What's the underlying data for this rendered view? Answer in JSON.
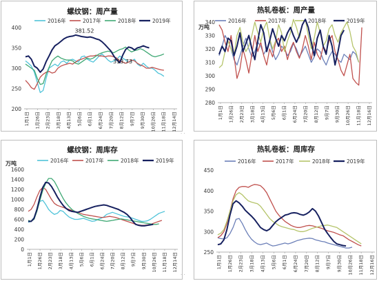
{
  "layout_note": "four line charts of weekly steel data, 2016-2019",
  "colors": {
    "2016": "#4fc3d9",
    "2017": "#c0504d",
    "2018": "#3fa874",
    "2019": "#16205f",
    "2016_alt": "#6b7fb8",
    "2018_alt": "#b5c46a"
  },
  "chart_data": [
    {
      "type": "line",
      "title": "螺纹钢：周产量",
      "unit": "",
      "ylim": [
        200,
        400
      ],
      "yticks": [
        200,
        250,
        300,
        350,
        400
      ],
      "xticks": [
        "1月1日",
        "1月26日",
        "2月23日",
        "3月18日",
        "4月13日",
        "5月6日",
        "6月1日",
        "6月24日",
        "7月20日",
        "8月12日",
        "9月7日",
        "9月30日",
        "10月26日",
        "11月18日",
        "12月14日"
      ],
      "annotations": [
        {
          "text": "381.52",
          "series": "2019年",
          "x": 20
        },
        {
          "text": "313.73",
          "series": "2019年",
          "x": 33
        }
      ],
      "series": [
        {
          "name": "2016年",
          "color": "#4fc3d9",
          "width": 1.3,
          "values": [
            318,
            312,
            305,
            290,
            265,
            240,
            245,
            275,
            300,
            305,
            310,
            305,
            315,
            318,
            312,
            320,
            322,
            318,
            315,
            328,
            330,
            322,
            318,
            315,
            322,
            330,
            335,
            328,
            320,
            315,
            318,
            322,
            330,
            325,
            320,
            315,
            318,
            322,
            310,
            305,
            312,
            305,
            300,
            300,
            295,
            288,
            285,
            280
          ]
        },
        {
          "name": "2017年",
          "color": "#c0504d",
          "width": 1.3,
          "values": [
            270,
            262,
            252,
            248,
            262,
            278,
            285,
            290,
            292,
            288,
            290,
            300,
            305,
            308,
            310,
            312,
            310,
            315,
            320,
            322,
            325,
            328,
            330,
            330,
            332,
            330,
            330,
            328,
            330,
            330,
            328,
            325,
            318,
            315,
            312,
            315,
            320,
            318,
            312,
            308,
            305,
            300,
            300,
            302,
            300,
            298,
            296,
            295
          ]
        },
        {
          "name": "2018年",
          "color": "#3fa874",
          "width": 1.3,
          "values": [
            310,
            305,
            300,
            295,
            275,
            260,
            262,
            285,
            302,
            318,
            325,
            330,
            325,
            322,
            320,
            320,
            318,
            312,
            310,
            315,
            320,
            325,
            322,
            325,
            330,
            335,
            338,
            340,
            342,
            340,
            338,
            342,
            346,
            348,
            352,
            345,
            340,
            343,
            345,
            348,
            345,
            340,
            335,
            330,
            328,
            330,
            332,
            335
          ]
        },
        {
          "name": "2019年",
          "color": "#16205f",
          "width": 2.0,
          "values": [
            328,
            330,
            322,
            305,
            300,
            290,
            298,
            316,
            330,
            345,
            355,
            360,
            366,
            372,
            376,
            378,
            379,
            381.52,
            380,
            378,
            377,
            376,
            377,
            375,
            372,
            370,
            365,
            358,
            350,
            342,
            330,
            320,
            313.73,
            332,
            346,
            352,
            350,
            345,
            350,
            352,
            355,
            352,
            350
          ]
        }
      ]
    },
    {
      "type": "line",
      "title": "热轧卷板：周产量",
      "unit": "万吨",
      "ylim": [
        280,
        340
      ],
      "yticks": [
        280,
        290,
        300,
        310,
        320,
        330,
        340
      ],
      "xticks": [
        "1月1日",
        "1月26日",
        "2月23日",
        "3月18日",
        "4月13日",
        "5月6日",
        "6月1日",
        "6月24日",
        "7月20日",
        "8月12日",
        "9月7日",
        "9月30日",
        "10月26日",
        "11月18日",
        "12月16日"
      ],
      "series": [
        {
          "name": "2016年",
          "color": "#6b7fb8",
          "width": 1.3,
          "values": [
            315,
            322,
            330,
            326,
            320,
            312,
            308,
            315,
            322,
            328,
            320,
            314,
            318,
            325,
            322,
            316,
            320,
            326,
            318,
            312,
            316,
            322,
            320,
            315,
            318,
            324,
            320,
            314,
            318,
            322,
            316,
            310,
            314,
            320,
            318,
            312,
            308,
            314,
            318,
            316,
            312,
            310,
            316,
            314,
            312,
            318,
            316,
            310
          ]
        },
        {
          "name": "2017年",
          "color": "#c0504d",
          "width": 1.3,
          "values": [
            338,
            334,
            325,
            318,
            330,
            315,
            298,
            305,
            320,
            312,
            302,
            316,
            330,
            318,
            325,
            315,
            308,
            320,
            314,
            325,
            328,
            318,
            322,
            312,
            320,
            325,
            318,
            313,
            320,
            330,
            322,
            312,
            325,
            316,
            312,
            322,
            318,
            326,
            330,
            318,
            312,
            304,
            300,
            308,
            316,
            298,
            295,
            293,
            336
          ]
        },
        {
          "name": "2018年",
          "color": "#b5c46a",
          "width": 1.3,
          "values": [
            306,
            308,
            318,
            326,
            320,
            315,
            330,
            336,
            325,
            318,
            322,
            330,
            340,
            332,
            325,
            335,
            340,
            328,
            320,
            326,
            338,
            332,
            318,
            326,
            332,
            342,
            336,
            328,
            338,
            342,
            330,
            320,
            328,
            340,
            332,
            322,
            326,
            335,
            338,
            330,
            325,
            332,
            336,
            340,
            333,
            322,
            318,
            310
          ]
        },
        {
          "name": "2019年",
          "color": "#16205f",
          "width": 2.0,
          "values": [
            316,
            322,
            318,
            328,
            326,
            315,
            322,
            332,
            318,
            324,
            330,
            320,
            312,
            326,
            338,
            332,
            318,
            326,
            335,
            328,
            322,
            330,
            326,
            332,
            336,
            330,
            325,
            330,
            338,
            342,
            336,
            325,
            315,
            328,
            334,
            322,
            316,
            330,
            322,
            308,
            318,
            330,
            334
          ]
        }
      ]
    },
    {
      "type": "line",
      "title": "螺纹钢：周库存",
      "unit": "万吨",
      "ylim": [
        0,
        1600
      ],
      "yticks": [
        0,
        200,
        400,
        600,
        800,
        1000,
        1200,
        1400,
        1600
      ],
      "xticks": [
        "1月1日",
        "1月26日",
        "2月23日",
        "3月18日",
        "4月13日",
        "5月6日",
        "6月1日",
        "6月24日",
        "7月20日",
        "8月12日",
        "9月7日",
        "9月30日",
        "10月26日",
        "11月18日",
        "12月14日"
      ],
      "series": [
        {
          "name": "2016年",
          "color": "#4fc3d9",
          "width": 1.3,
          "values": [
            540,
            560,
            640,
            800,
            960,
            980,
            900,
            800,
            740,
            700,
            720,
            780,
            760,
            700,
            650,
            620,
            600,
            600,
            610,
            620,
            600,
            580,
            560,
            570,
            600,
            620,
            650,
            700,
            720,
            740,
            720,
            700,
            680,
            660,
            650,
            640,
            620,
            600,
            580,
            560,
            560,
            570,
            600,
            640,
            680,
            720,
            740,
            760
          ]
        },
        {
          "name": "2017年",
          "color": "#c0504d",
          "width": 1.3,
          "values": [
            760,
            800,
            900,
            1050,
            1180,
            1240,
            1200,
            1100,
            1000,
            920,
            880,
            860,
            840,
            820,
            800,
            780,
            760,
            740,
            720,
            700,
            690,
            680,
            670,
            660,
            650,
            640,
            640,
            650,
            660,
            650,
            640,
            620,
            600,
            580,
            560,
            540,
            520,
            500,
            490,
            480,
            480,
            490,
            500,
            520,
            540,
            560,
            580
          ]
        },
        {
          "name": "2018年",
          "color": "#3fa874",
          "width": 1.3,
          "values": [
            580,
            560,
            600,
            760,
            980,
            1180,
            1320,
            1420,
            1420,
            1360,
            1250,
            1130,
            1020,
            930,
            860,
            800,
            760,
            720,
            690,
            660,
            640,
            620,
            610,
            600,
            590,
            580,
            570,
            560,
            570,
            580,
            590,
            600,
            610,
            600,
            590,
            580,
            570,
            560,
            550,
            540,
            530,
            520,
            510,
            500,
            500,
            510
          ]
        },
        {
          "name": "2019年",
          "color": "#16205f",
          "width": 2.0,
          "values": [
            560,
            560,
            620,
            800,
            1040,
            1240,
            1340,
            1330,
            1260,
            1160,
            1050,
            960,
            880,
            820,
            780,
            760,
            750,
            740,
            760,
            780,
            800,
            820,
            840,
            860,
            870,
            880,
            890,
            880,
            860,
            840,
            820,
            800,
            770,
            740,
            700,
            640,
            560,
            500,
            480,
            470,
            470,
            480,
            490,
            500
          ]
        }
      ]
    },
    {
      "type": "line",
      "title": "热轧卷板：周库存",
      "unit": "",
      "ylim": [
        250,
        450
      ],
      "yticks": [
        250,
        300,
        350,
        400,
        450
      ],
      "xticks": [
        "1月1日",
        "1月26日",
        "2月23日",
        "3月18日",
        "4月13日",
        "5月6日",
        "6月1日",
        "6月24日",
        "7月20日",
        "8月12日",
        "9月7日",
        "9月30日",
        "10月26日",
        "11月18日",
        "12月16日"
      ],
      "series": [
        {
          "name": "2016年",
          "color": "#6b7fb8",
          "width": 1.3,
          "values": [
            285,
            283,
            282,
            285,
            295,
            310,
            330,
            332,
            320,
            305,
            292,
            282,
            275,
            270,
            268,
            270,
            272,
            268,
            265,
            266,
            268,
            270,
            272,
            270,
            272,
            275,
            278,
            280,
            282,
            283,
            284,
            283,
            280,
            278,
            276,
            275,
            272,
            270,
            268,
            266,
            264,
            262,
            260,
            260,
            262
          ]
        },
        {
          "name": "2017年",
          "color": "#c0504d",
          "width": 1.3,
          "values": [
            285,
            290,
            300,
            320,
            350,
            380,
            400,
            408,
            410,
            410,
            408,
            412,
            415,
            414,
            412,
            405,
            395,
            380,
            365,
            350,
            340,
            332,
            325,
            320,
            315,
            312,
            310,
            310,
            312,
            314,
            315,
            314,
            312,
            310,
            308,
            305,
            302,
            300,
            298,
            295,
            292,
            290,
            285,
            280,
            276,
            272,
            268,
            265
          ]
        },
        {
          "name": "2018年",
          "color": "#b5c46a",
          "width": 1.3,
          "values": [
            292,
            296,
            305,
            325,
            350,
            375,
            390,
            395,
            390,
            382,
            375,
            372,
            370,
            368,
            362,
            352,
            342,
            332,
            325,
            320,
            315,
            312,
            310,
            308,
            306,
            305,
            302,
            300,
            300,
            302,
            305,
            308,
            310,
            312,
            314,
            315,
            316,
            314,
            312,
            310,
            305,
            300,
            295,
            290,
            285,
            280,
            275,
            270
          ]
        },
        {
          "name": "2019年",
          "color": "#16205f",
          "width": 2.0,
          "values": [
            268,
            270,
            280,
            305,
            340,
            368,
            375,
            370,
            362,
            352,
            345,
            338,
            330,
            320,
            310,
            305,
            302,
            306,
            315,
            324,
            330,
            335,
            340,
            342,
            345,
            346,
            345,
            342,
            340,
            343,
            348,
            356,
            350,
            338,
            322,
            306,
            295,
            285,
            276,
            270,
            268,
            266,
            265
          ]
        }
      ]
    }
  ]
}
